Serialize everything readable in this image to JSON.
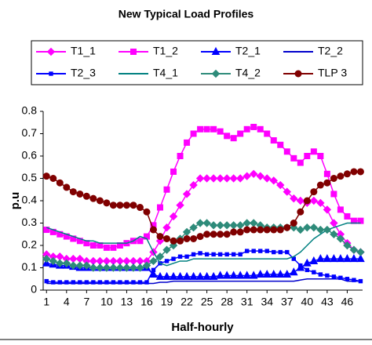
{
  "chart_data": {
    "type": "line",
    "title": "New Typical Load Profiles",
    "xlabel": "Half-hourly",
    "ylabel": "p.u",
    "x": [
      1,
      2,
      3,
      4,
      5,
      6,
      7,
      8,
      9,
      10,
      11,
      12,
      13,
      14,
      15,
      16,
      17,
      18,
      19,
      20,
      21,
      22,
      23,
      24,
      25,
      26,
      27,
      28,
      29,
      30,
      31,
      32,
      33,
      34,
      35,
      36,
      37,
      38,
      39,
      40,
      41,
      42,
      43,
      44,
      45,
      46,
      47,
      48
    ],
    "xlim": [
      0.5,
      48.3
    ],
    "xticks": [
      1,
      4,
      7,
      10,
      13,
      16,
      19,
      22,
      25,
      28,
      31,
      34,
      37,
      40,
      43,
      46
    ],
    "ylim": [
      0,
      0.8
    ],
    "yticks": [
      0,
      0.1,
      0.2,
      0.3,
      0.4,
      0.5,
      0.6,
      0.7,
      0.8
    ],
    "series": [
      {
        "name": "T1_1",
        "color": "#ff00ff",
        "marker": "diamond",
        "values": [
          0.16,
          0.15,
          0.15,
          0.14,
          0.14,
          0.14,
          0.13,
          0.13,
          0.13,
          0.13,
          0.13,
          0.13,
          0.13,
          0.13,
          0.13,
          0.13,
          0.17,
          0.22,
          0.28,
          0.33,
          0.38,
          0.43,
          0.47,
          0.5,
          0.5,
          0.5,
          0.5,
          0.5,
          0.5,
          0.5,
          0.51,
          0.52,
          0.51,
          0.5,
          0.49,
          0.47,
          0.44,
          0.41,
          0.4,
          0.39,
          0.4,
          0.39,
          0.36,
          0.3,
          0.25,
          0.21,
          0.18,
          0.17
        ]
      },
      {
        "name": "T1_2",
        "color": "#ff00ff",
        "marker": "square",
        "values": [
          0.27,
          0.26,
          0.25,
          0.24,
          0.23,
          0.22,
          0.21,
          0.2,
          0.2,
          0.19,
          0.19,
          0.2,
          0.21,
          0.22,
          0.22,
          0.24,
          0.29,
          0.37,
          0.45,
          0.53,
          0.6,
          0.66,
          0.7,
          0.72,
          0.72,
          0.72,
          0.71,
          0.69,
          0.68,
          0.7,
          0.72,
          0.73,
          0.72,
          0.7,
          0.67,
          0.65,
          0.62,
          0.59,
          0.57,
          0.6,
          0.62,
          0.6,
          0.52,
          0.43,
          0.36,
          0.33,
          0.31,
          0.31
        ]
      },
      {
        "name": "T2_1",
        "color": "#0000ff",
        "marker": "triangle",
        "values": [
          0.12,
          0.115,
          0.11,
          0.11,
          0.105,
          0.1,
          0.1,
          0.1,
          0.1,
          0.1,
          0.1,
          0.1,
          0.1,
          0.1,
          0.1,
          0.1,
          0.07,
          0.06,
          0.06,
          0.06,
          0.06,
          0.06,
          0.06,
          0.06,
          0.06,
          0.06,
          0.065,
          0.065,
          0.065,
          0.065,
          0.065,
          0.065,
          0.07,
          0.07,
          0.07,
          0.07,
          0.07,
          0.08,
          0.1,
          0.12,
          0.13,
          0.14,
          0.14,
          0.14,
          0.14,
          0.14,
          0.14,
          0.14
        ]
      },
      {
        "name": "T2_2",
        "color": "#0000cc",
        "marker": "none",
        "values": [
          0.03,
          0.03,
          0.03,
          0.03,
          0.03,
          0.03,
          0.03,
          0.03,
          0.03,
          0.03,
          0.03,
          0.03,
          0.03,
          0.03,
          0.03,
          0.03,
          0.03,
          0.035,
          0.035,
          0.04,
          0.04,
          0.04,
          0.04,
          0.04,
          0.04,
          0.04,
          0.04,
          0.04,
          0.04,
          0.04,
          0.04,
          0.04,
          0.04,
          0.04,
          0.04,
          0.04,
          0.04,
          0.04,
          0.045,
          0.05,
          0.05,
          0.05,
          0.05,
          0.05,
          0.05,
          0.04,
          0.04,
          0.04
        ]
      },
      {
        "name": "T2_3",
        "color": "#0000ff",
        "marker": "smallsquare",
        "values": [
          0.04,
          0.035,
          0.035,
          0.035,
          0.035,
          0.035,
          0.035,
          0.035,
          0.035,
          0.035,
          0.035,
          0.035,
          0.035,
          0.035,
          0.035,
          0.035,
          0.09,
          0.12,
          0.13,
          0.14,
          0.15,
          0.15,
          0.16,
          0.165,
          0.16,
          0.16,
          0.16,
          0.16,
          0.16,
          0.16,
          0.175,
          0.175,
          0.175,
          0.175,
          0.17,
          0.17,
          0.17,
          0.14,
          0.11,
          0.09,
          0.08,
          0.07,
          0.065,
          0.06,
          0.055,
          0.05,
          0.045,
          0.04
        ]
      },
      {
        "name": "T4_1",
        "color": "#008080",
        "marker": "none",
        "values": [
          0.28,
          0.27,
          0.26,
          0.25,
          0.24,
          0.23,
          0.22,
          0.22,
          0.21,
          0.21,
          0.21,
          0.21,
          0.21,
          0.22,
          0.24,
          0.23,
          0.17,
          0.12,
          0.11,
          0.12,
          0.13,
          0.13,
          0.14,
          0.14,
          0.14,
          0.14,
          0.14,
          0.14,
          0.14,
          0.14,
          0.14,
          0.14,
          0.14,
          0.14,
          0.14,
          0.14,
          0.14,
          0.15,
          0.17,
          0.2,
          0.23,
          0.25,
          0.27,
          0.28,
          0.29,
          0.3,
          0.3,
          0.3
        ]
      },
      {
        "name": "T4_2",
        "color": "#2e8b7a",
        "marker": "diamond",
        "values": [
          0.14,
          0.13,
          0.12,
          0.12,
          0.11,
          0.11,
          0.11,
          0.1,
          0.1,
          0.1,
          0.1,
          0.1,
          0.1,
          0.1,
          0.1,
          0.11,
          0.13,
          0.15,
          0.18,
          0.2,
          0.23,
          0.26,
          0.28,
          0.3,
          0.3,
          0.29,
          0.29,
          0.29,
          0.29,
          0.29,
          0.3,
          0.3,
          0.29,
          0.28,
          0.28,
          0.28,
          0.28,
          0.28,
          0.27,
          0.28,
          0.28,
          0.27,
          0.27,
          0.25,
          0.23,
          0.2,
          0.18,
          0.17
        ]
      },
      {
        "name": "TLP 3",
        "color": "#800000",
        "marker": "circle",
        "values": [
          0.51,
          0.5,
          0.48,
          0.46,
          0.44,
          0.43,
          0.42,
          0.41,
          0.4,
          0.39,
          0.38,
          0.38,
          0.38,
          0.38,
          0.37,
          0.35,
          0.27,
          0.24,
          0.23,
          0.22,
          0.22,
          0.23,
          0.23,
          0.24,
          0.25,
          0.25,
          0.25,
          0.25,
          0.26,
          0.26,
          0.27,
          0.27,
          0.27,
          0.27,
          0.27,
          0.27,
          0.28,
          0.3,
          0.35,
          0.4,
          0.44,
          0.47,
          0.48,
          0.5,
          0.51,
          0.52,
          0.53,
          0.53
        ]
      }
    ]
  }
}
